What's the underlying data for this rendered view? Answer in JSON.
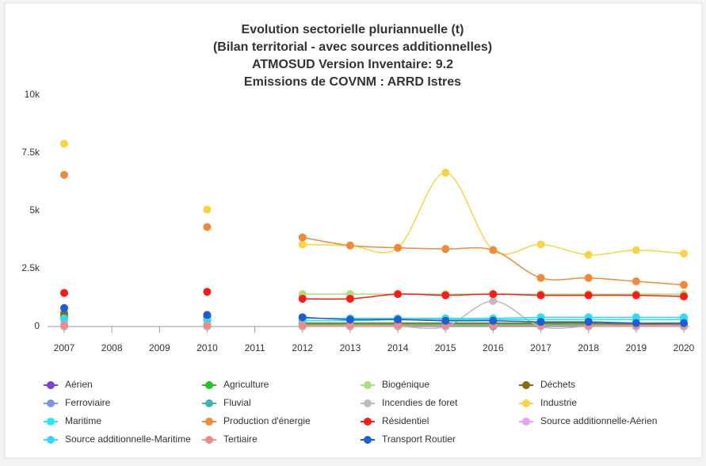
{
  "chart_data": {
    "type": "line",
    "title": [
      "Evolution sectorielle pluriannuelle (t)",
      "(Bilan territorial - avec sources additionnelles)",
      "ATMOSUD Version Inventaire: 9.2",
      "Emissions de COVNM : ARRD Istres"
    ],
    "categories": [
      "2007",
      "2008",
      "2009",
      "2010",
      "2011",
      "2012",
      "2013",
      "2014",
      "2015",
      "2016",
      "2017",
      "2018",
      "2019",
      "2020"
    ],
    "ylim": [
      0,
      10000
    ],
    "yticks": [
      0,
      {
        "value": 2500,
        "label": "2.5k"
      },
      {
        "value": 5000,
        "label": "5k"
      },
      {
        "value": 7500,
        "label": "7.5k"
      },
      {
        "value": 10000,
        "label": "10k"
      }
    ],
    "series": [
      {
        "name": "Aérien",
        "color": "#7b3fe4",
        "values": [
          10,
          null,
          null,
          10,
          null,
          10,
          10,
          10,
          10,
          10,
          10,
          10,
          10,
          10
        ]
      },
      {
        "name": "Agriculture",
        "color": "#22c322",
        "values": [
          450,
          null,
          null,
          400,
          null,
          100,
          100,
          100,
          100,
          100,
          100,
          100,
          100,
          100
        ]
      },
      {
        "name": "Biogénique",
        "color": "#a7e07a",
        "values": [
          600,
          null,
          null,
          500,
          null,
          1400,
          1400,
          1400,
          1400,
          1400,
          1400,
          1400,
          1400,
          1400
        ]
      },
      {
        "name": "Déchets",
        "color": "#8b6914",
        "values": [
          550,
          null,
          null,
          450,
          null,
          150,
          150,
          150,
          150,
          150,
          150,
          150,
          100,
          100
        ]
      },
      {
        "name": "Ferroviaire",
        "color": "#7b96e8",
        "values": [
          5,
          null,
          null,
          5,
          null,
          5,
          5,
          5,
          5,
          5,
          5,
          5,
          5,
          5
        ]
      },
      {
        "name": "Fluvial",
        "color": "#3cb3b0",
        "values": [
          20,
          null,
          null,
          20,
          null,
          20,
          20,
          20,
          20,
          20,
          20,
          20,
          20,
          20
        ]
      },
      {
        "name": "Incendies de foret",
        "color": "#bbbbbb",
        "values": [
          0,
          null,
          null,
          0,
          null,
          0,
          0,
          0,
          0,
          1100,
          0,
          0,
          0,
          0
        ]
      },
      {
        "name": "Industrie",
        "color": "#f9d342",
        "values": [
          7900,
          null,
          null,
          5050,
          null,
          3550,
          3500,
          3400,
          6650,
          3300,
          3550,
          3100,
          3300,
          3150
        ]
      },
      {
        "name": "Maritime",
        "color": "#22e7f0",
        "values": [
          300,
          null,
          null,
          250,
          null,
          250,
          250,
          300,
          300,
          300,
          300,
          300,
          300,
          300
        ]
      },
      {
        "name": "Production d'énergie",
        "color": "#f08a38",
        "values": [
          6550,
          null,
          null,
          4300,
          null,
          3850,
          3500,
          3400,
          3350,
          3300,
          2100,
          2100,
          1950,
          1800
        ]
      },
      {
        "name": "Résidentiel",
        "color": "#ff1a1a",
        "values": [
          1450,
          null,
          null,
          1500,
          null,
          1200,
          1200,
          1400,
          1350,
          1400,
          1350,
          1350,
          1350,
          1300
        ]
      },
      {
        "name": "Source additionnelle-Aérien",
        "color": "#e6a0f0",
        "values": [
          100,
          null,
          null,
          100,
          null,
          50,
          50,
          50,
          50,
          50,
          50,
          50,
          50,
          50
        ]
      },
      {
        "name": "Source additionnelle-Maritime",
        "color": "#33dcec",
        "values": [
          350,
          null,
          null,
          300,
          null,
          350,
          350,
          350,
          350,
          350,
          400,
          400,
          400,
          400
        ]
      },
      {
        "name": "Tertiaire",
        "color": "#f28a8a",
        "values": [
          50,
          null,
          null,
          50,
          null,
          50,
          50,
          50,
          50,
          50,
          50,
          50,
          50,
          50
        ]
      },
      {
        "name": "Transport Routier",
        "color": "#1a5fd6",
        "values": [
          800,
          null,
          null,
          500,
          null,
          400,
          300,
          300,
          250,
          250,
          200,
          200,
          150,
          150
        ]
      }
    ]
  }
}
